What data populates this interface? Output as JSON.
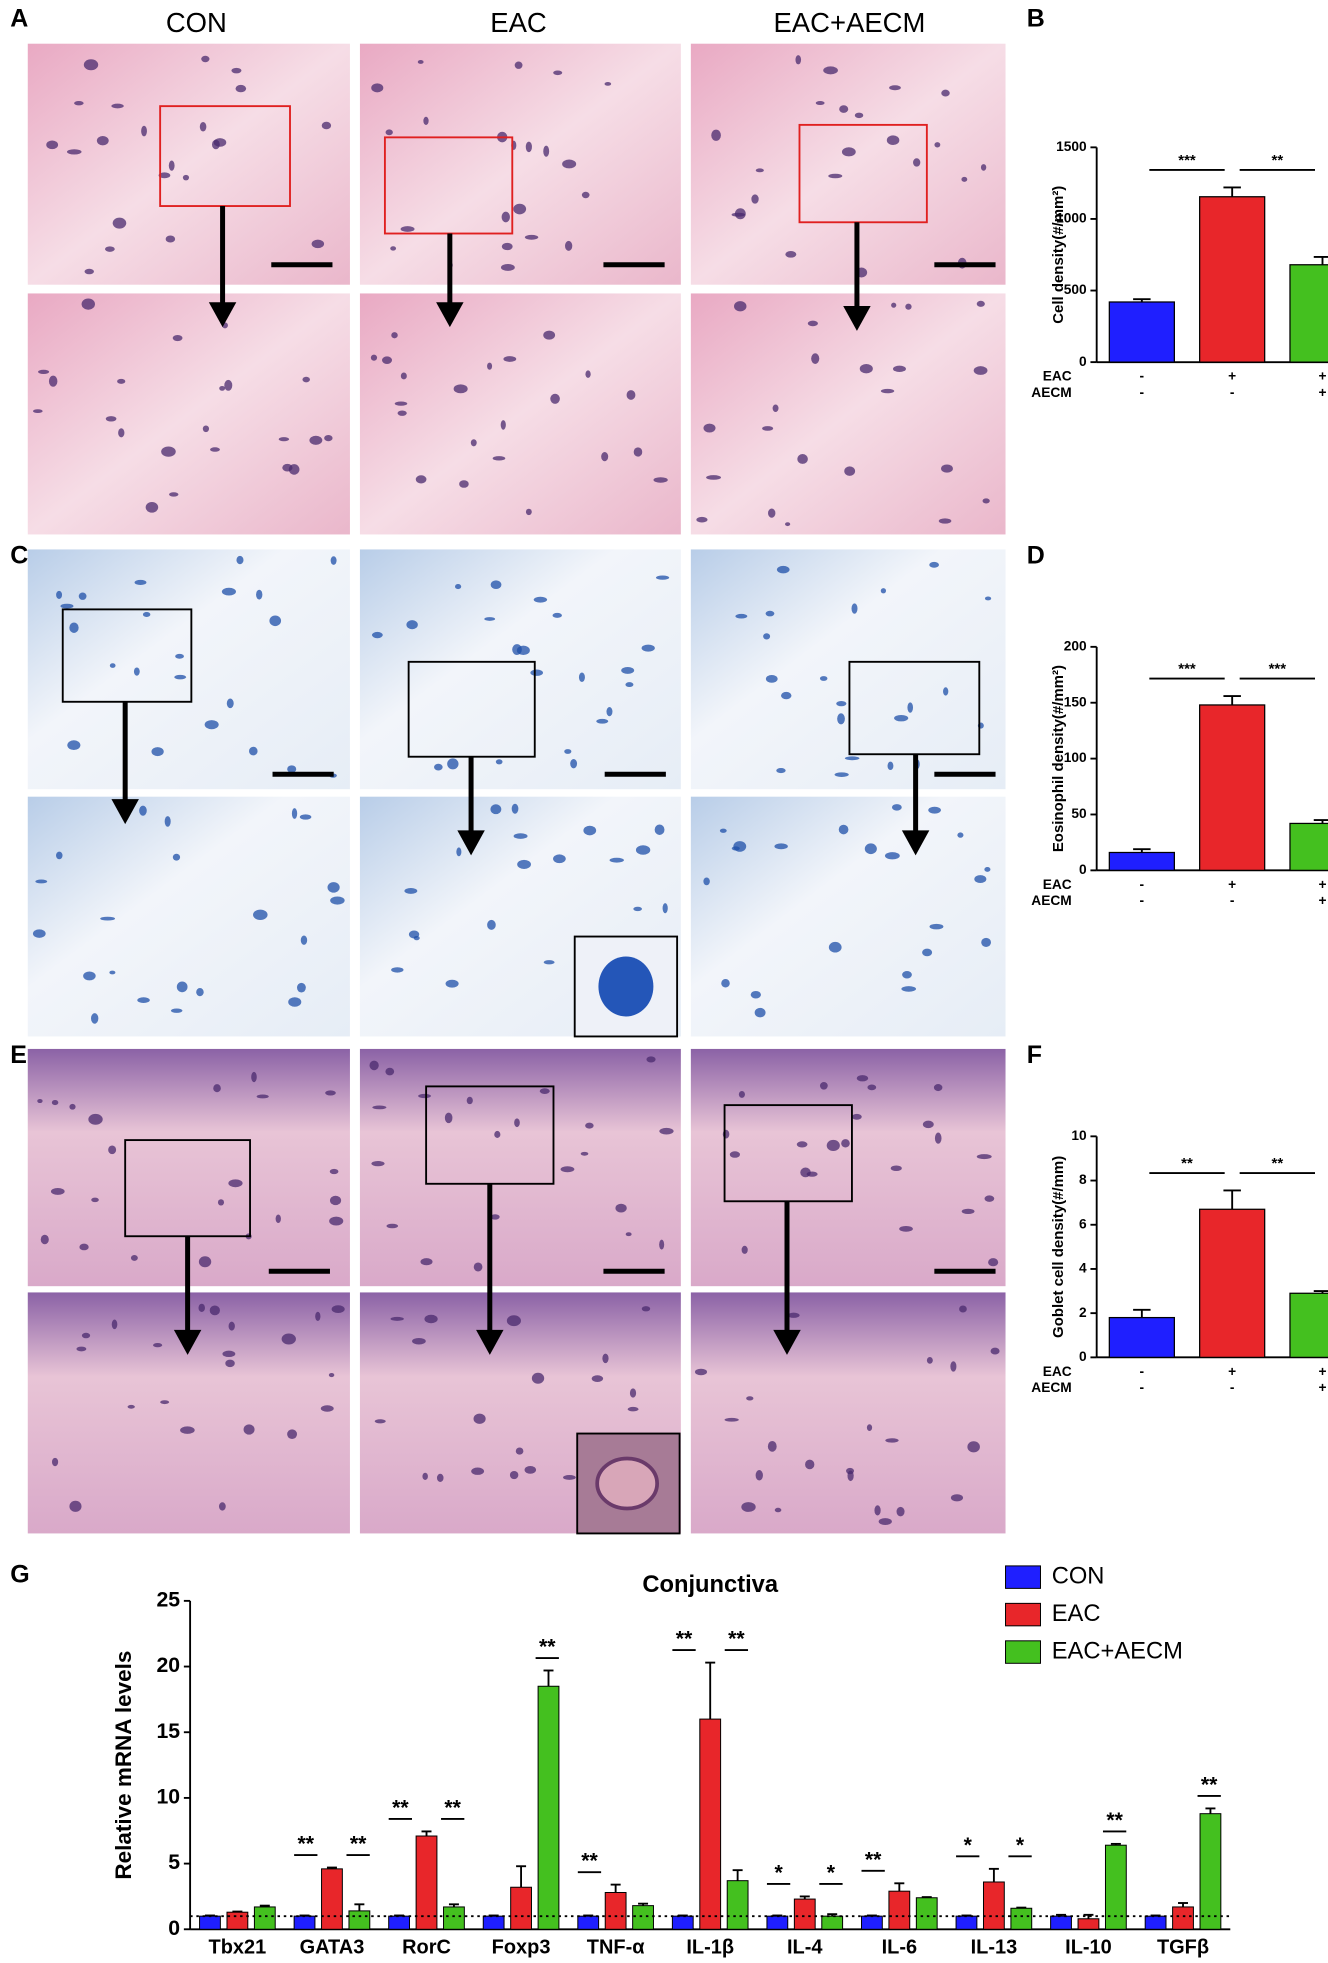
{
  "panel_labels": [
    "A",
    "B",
    "C",
    "D",
    "E",
    "F",
    "G"
  ],
  "column_headers": [
    "CON",
    "EAC",
    "EAC+AECM"
  ],
  "chart_data": [
    {
      "type": "bar",
      "ylabel": "Cell density(#/mm²)",
      "values": [
        420,
        1155,
        680
      ],
      "errors": [
        20,
        65,
        55
      ],
      "colors": [
        "#1f1fff",
        "#e8262a",
        "#44c01f"
      ],
      "ylim": [
        0,
        1500
      ],
      "yticks": [
        0,
        500,
        1000,
        1500
      ],
      "conditions": [
        {
          "name": "EAC",
          "marks": [
            "-",
            "+",
            "+"
          ]
        },
        {
          "name": "AECM",
          "marks": [
            "-",
            "-",
            "+"
          ]
        }
      ],
      "significance": [
        "***",
        "**"
      ]
    },
    {
      "type": "bar",
      "ylabel": "Eosinophil density(#/mm²)",
      "values": [
        16,
        148,
        42
      ],
      "errors": [
        3,
        8,
        3
      ],
      "colors": [
        "#1f1fff",
        "#e8262a",
        "#44c01f"
      ],
      "ylim": [
        0,
        200
      ],
      "yticks": [
        0,
        50,
        100,
        150,
        200
      ],
      "conditions": [
        {
          "name": "EAC",
          "marks": [
            "-",
            "+",
            "+"
          ]
        },
        {
          "name": "AECM",
          "marks": [
            "-",
            "-",
            "+"
          ]
        }
      ],
      "significance": [
        "***",
        "***"
      ]
    },
    {
      "type": "bar",
      "ylabel": "Goblet cell density(#/mm)",
      "values": [
        1.8,
        6.7,
        2.9
      ],
      "errors": [
        0.35,
        0.85,
        0.1
      ],
      "colors": [
        "#1f1fff",
        "#e8262a",
        "#44c01f"
      ],
      "ylim": [
        0,
        10
      ],
      "yticks": [
        0,
        2,
        4,
        6,
        8,
        10
      ],
      "conditions": [
        {
          "name": "EAC",
          "marks": [
            "-",
            "+",
            "+"
          ]
        },
        {
          "name": "AECM",
          "marks": [
            "-",
            "-",
            "+"
          ]
        }
      ],
      "significance": [
        "**",
        "**"
      ]
    },
    {
      "type": "grouped_bar",
      "title": "Conjunctiva",
      "ylabel": "Relative mRNA levels",
      "categories": [
        "Tbx21",
        "GATA3",
        "RorC",
        "Foxp3",
        "TNF-α",
        "IL-1β",
        "IL-4",
        "IL-6",
        "IL-13",
        "IL-10",
        "TGFβ"
      ],
      "series": [
        {
          "name": "CON",
          "color": "#1f1fff",
          "values": [
            1,
            1,
            1,
            1,
            1,
            1,
            1,
            1,
            1,
            1,
            1
          ],
          "errors": [
            0.05,
            0.05,
            0.05,
            0.05,
            0.05,
            0.05,
            0.05,
            0.05,
            0.05,
            0.1,
            0.05
          ]
        },
        {
          "name": "EAC",
          "color": "#e8262a",
          "values": [
            1.3,
            4.6,
            7.1,
            3.2,
            2.8,
            16,
            2.3,
            2.9,
            3.6,
            0.8,
            1.7
          ],
          "errors": [
            0.05,
            0.1,
            0.35,
            1.6,
            0.6,
            4.3,
            0.2,
            0.6,
            1.0,
            0.3,
            0.3
          ]
        },
        {
          "name": "EAC+AECM",
          "color": "#44c01f",
          "values": [
            1.7,
            1.4,
            1.7,
            18.5,
            1.8,
            3.7,
            1.0,
            2.4,
            1.6,
            6.4,
            8.8
          ],
          "errors": [
            0.1,
            0.5,
            0.2,
            1.2,
            0.15,
            0.8,
            0.15,
            0.05,
            0.05,
            0.1,
            0.4
          ]
        }
      ],
      "ylim": [
        0,
        25
      ],
      "yticks": [
        0,
        5,
        10,
        15,
        20,
        25
      ],
      "reference_line": 1,
      "legend": "top-right",
      "significance": [
        [
          null,
          null
        ],
        [
          "**",
          "**"
        ],
        [
          "**",
          "**"
        ],
        [
          null,
          "**"
        ],
        [
          "**",
          null
        ],
        [
          "**",
          "**"
        ],
        [
          "*",
          "*"
        ],
        [
          "**",
          null
        ],
        [
          "*",
          "*"
        ],
        [
          null,
          "**"
        ],
        [
          null,
          "**"
        ]
      ]
    }
  ]
}
